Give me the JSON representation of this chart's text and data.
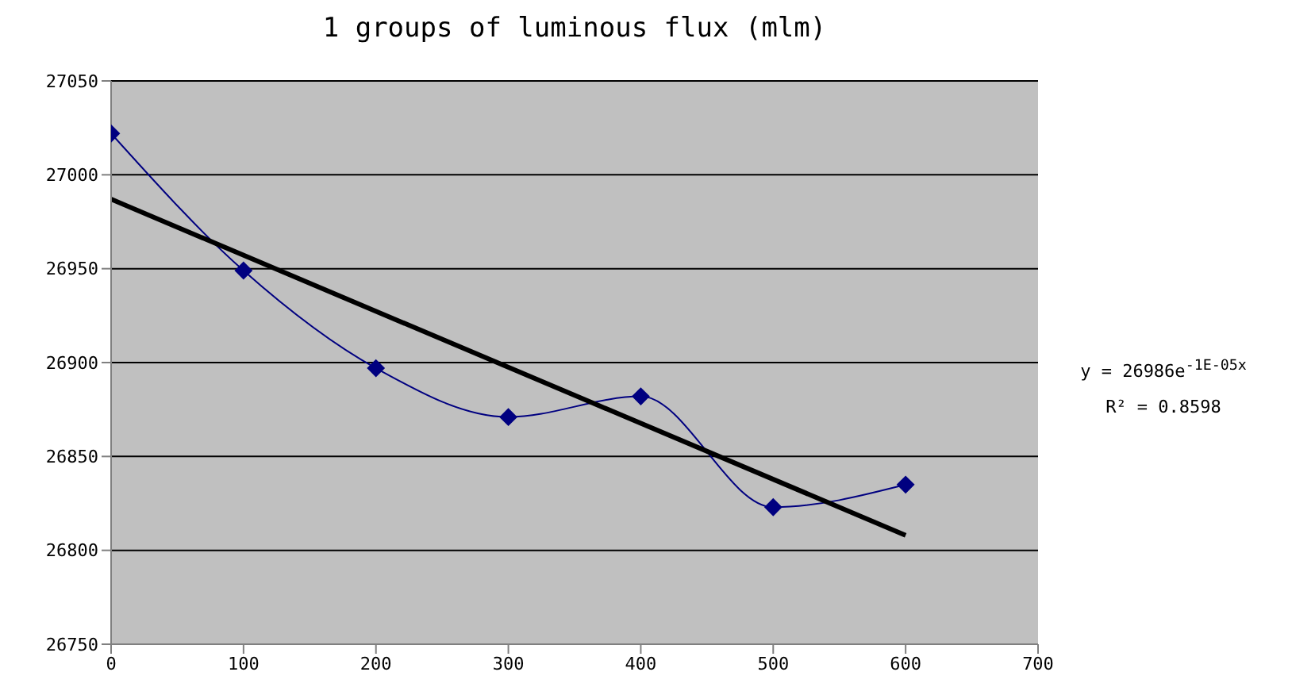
{
  "chart_data": {
    "type": "line",
    "title": "1 groups of luminous flux (mlm)",
    "x": [
      0,
      100,
      200,
      300,
      400,
      500,
      600
    ],
    "series": [
      {
        "color": "#000080",
        "values": [
          27022,
          26949,
          26897,
          26871,
          26882,
          26823,
          26835
        ],
        "marker": "diamond"
      },
      {
        "type": "line",
        "color": "#000000",
        "x": [
          0,
          600
        ],
        "values": [
          26987,
          26808
        ],
        "marker": "none"
      }
    ],
    "xlim": [
      0,
      700
    ],
    "xticks": [
      0,
      100,
      200,
      300,
      400,
      500,
      600,
      700
    ],
    "ylim": [
      26750,
      27050
    ],
    "yticks": [
      26750,
      26800,
      26850,
      26900,
      26950,
      27000,
      27050
    ],
    "grid": "y",
    "annotations": [
      "y = 26986e$^{-1E-05x}$",
      "R² = 0.8598"
    ]
  }
}
